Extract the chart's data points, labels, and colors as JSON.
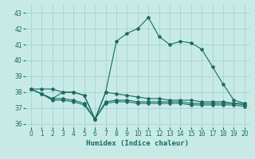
{
  "xlabel": "Humidex (Indice chaleur)",
  "bg_color": "#c8eae6",
  "grid_color": "#9dcfca",
  "line_color": "#1a6b62",
  "xlim": [
    -0.5,
    20.5
  ],
  "ylim": [
    35.8,
    43.5
  ],
  "yticks": [
    36,
    37,
    38,
    39,
    40,
    41,
    42,
    43
  ],
  "xticks": [
    0,
    1,
    2,
    3,
    4,
    5,
    6,
    7,
    8,
    9,
    10,
    11,
    12,
    13,
    14,
    15,
    16,
    17,
    18,
    19,
    20
  ],
  "series1": [
    38.2,
    37.9,
    37.6,
    38.0,
    38.0,
    37.8,
    36.3,
    38.0,
    41.2,
    41.7,
    42.0,
    42.7,
    41.5,
    41.0,
    41.2,
    41.1,
    40.7,
    39.6,
    38.5,
    37.5,
    37.3
  ],
  "series2": [
    38.2,
    38.2,
    38.2,
    38.0,
    38.0,
    37.8,
    36.3,
    38.0,
    37.9,
    37.8,
    37.7,
    37.6,
    37.6,
    37.5,
    37.5,
    37.5,
    37.4,
    37.4,
    37.4,
    37.3,
    37.3
  ],
  "series3": [
    38.2,
    37.9,
    37.6,
    37.6,
    37.5,
    37.3,
    36.3,
    37.4,
    37.5,
    37.5,
    37.4,
    37.4,
    37.4,
    37.4,
    37.4,
    37.3,
    37.3,
    37.3,
    37.3,
    37.3,
    37.2
  ],
  "series4": [
    38.2,
    37.9,
    37.5,
    37.5,
    37.4,
    37.2,
    36.3,
    37.3,
    37.4,
    37.4,
    37.3,
    37.3,
    37.3,
    37.3,
    37.3,
    37.2,
    37.2,
    37.2,
    37.2,
    37.2,
    37.1
  ]
}
